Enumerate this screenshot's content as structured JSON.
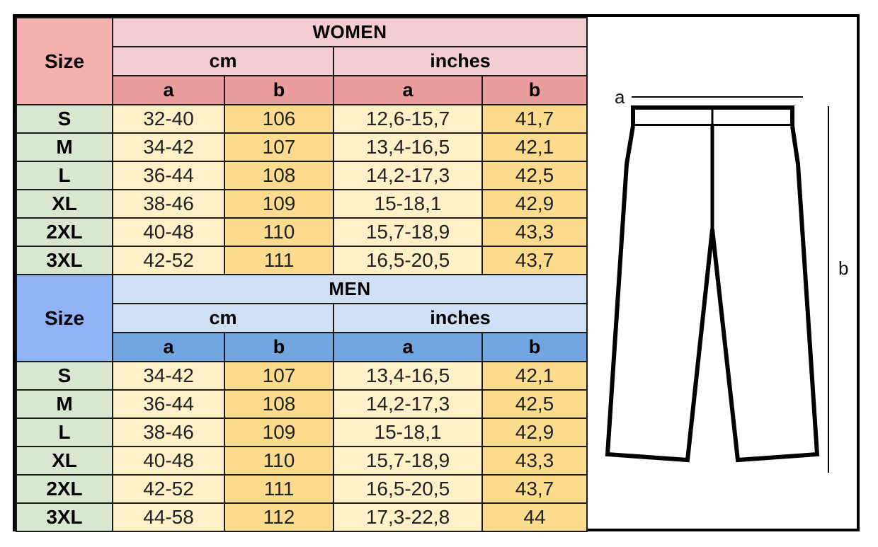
{
  "women": {
    "title": "WOMEN",
    "size_label": "Size",
    "unit_cm": "cm",
    "unit_in": "inches",
    "cols": [
      "a",
      "b",
      "a",
      "b"
    ],
    "rows": [
      {
        "size": "S",
        "cm_a": "32-40",
        "cm_b": "106",
        "in_a": "12,6-15,7",
        "in_b": "41,7"
      },
      {
        "size": "M",
        "cm_a": "34-42",
        "cm_b": "107",
        "in_a": "13,4-16,5",
        "in_b": "42,1"
      },
      {
        "size": "L",
        "cm_a": "36-44",
        "cm_b": "108",
        "in_a": "14,2-17,3",
        "in_b": "42,5"
      },
      {
        "size": "XL",
        "cm_a": "38-46",
        "cm_b": "109",
        "in_a": "15-18,1",
        "in_b": "42,9"
      },
      {
        "size": "2XL",
        "cm_a": "40-48",
        "cm_b": "110",
        "in_a": "15,7-18,9",
        "in_b": "43,3"
      },
      {
        "size": "3XL",
        "cm_a": "42-52",
        "cm_b": "111",
        "in_a": "16,5-20,5",
        "in_b": "43,7"
      }
    ]
  },
  "men": {
    "title": "MEN",
    "size_label": "Size",
    "unit_cm": "cm",
    "unit_in": "inches",
    "cols": [
      "a",
      "b",
      "a",
      "b"
    ],
    "rows": [
      {
        "size": "S",
        "cm_a": "34-42",
        "cm_b": "107",
        "in_a": "13,4-16,5",
        "in_b": "42,1"
      },
      {
        "size": "M",
        "cm_a": "36-44",
        "cm_b": "108",
        "in_a": "14,2-17,3",
        "in_b": "42,5"
      },
      {
        "size": "L",
        "cm_a": "38-46",
        "cm_b": "109",
        "in_a": "15-18,1",
        "in_b": "42,9"
      },
      {
        "size": "XL",
        "cm_a": "40-48",
        "cm_b": "110",
        "in_a": "15,7-18,9",
        "in_b": "43,3"
      },
      {
        "size": "2XL",
        "cm_a": "42-52",
        "cm_b": "111",
        "in_a": "16,5-20,5",
        "in_b": "43,7"
      },
      {
        "size": "3XL",
        "cm_a": "44-58",
        "cm_b": "112",
        "in_a": "17,3-22,8",
        "in_b": "44"
      }
    ]
  },
  "diagram": {
    "label_a": "a",
    "label_b": "b",
    "icon": "trousers-measurement-diagram"
  },
  "colors": {
    "women_size_header": "#f4b0ac",
    "women_header": "#f4cdd0",
    "women_col_header": "#eb9c9c",
    "men_size_header": "#8fb3f5",
    "men_header": "#cfe0f5",
    "men_col_header": "#72a6e0",
    "size_cell": "#d8e8d0",
    "value_light": "#fff0c8",
    "value_dark": "#fbdc8e"
  }
}
